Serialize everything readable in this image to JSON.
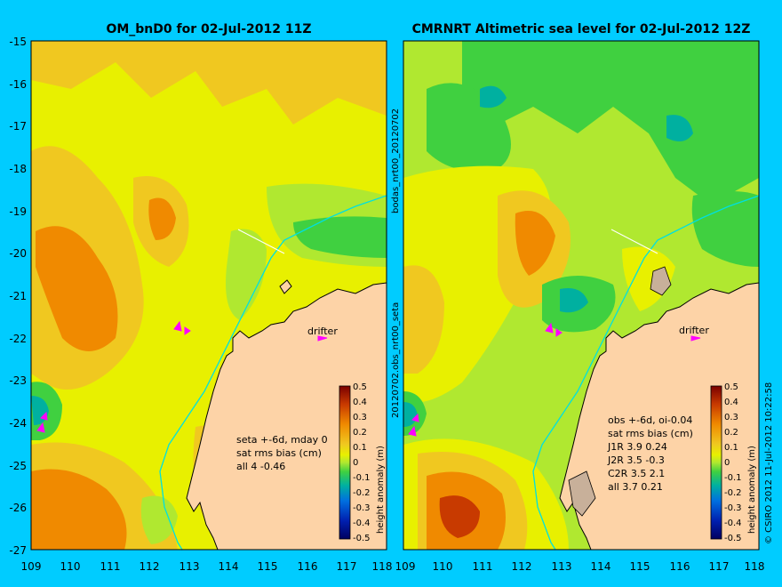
{
  "panels": [
    {
      "title": "OM_bnD0 for 02-Jul-2012 11Z",
      "annotation_lines": [
        "seta +-6d, mday 0",
        "sat rms bias (cm)",
        "all 4 -0.46"
      ],
      "drifter_label": "drifter"
    },
    {
      "title": "CMRNRT Altimetric sea level  for 02-Jul-2012 12Z",
      "annotation_lines": [
        "obs +-6d, oi-0.04",
        "sat rms bias (cm)",
        "J1R   3.9 0.24",
        "J2R   3.5 -0.3",
        "C2R   3.5 2.1",
        "all 3.7 0.21"
      ],
      "drifter_label": "drifter"
    }
  ],
  "axes": {
    "lon_ticks": [
      "109",
      "110",
      "111",
      "112",
      "113",
      "114",
      "115",
      "116",
      "117",
      "118"
    ],
    "lat_ticks": [
      "-15",
      "-16",
      "-17",
      "-18",
      "-19",
      "-20",
      "-21",
      "-22",
      "-23",
      "-24",
      "-25",
      "-26",
      "-27"
    ],
    "lon_range": [
      109,
      118
    ],
    "lat_range": [
      -27,
      -15
    ]
  },
  "colorbar": {
    "label": "height anomaly (m)",
    "ticks": [
      "0.5",
      "0.4",
      "0.3",
      "0.2",
      "0.1",
      "0",
      "-0.1",
      "-0.2",
      "-0.3",
      "-0.4",
      "-0.5"
    ],
    "range": [
      -0.5,
      0.5
    ]
  },
  "side_labels": {
    "middle_top": "bodas_nrt00_20120702",
    "middle_bottom": "20120702.obs_nrt00_seta",
    "right": "© CSIRO 2012   11-Jul-2012 10:22:58"
  },
  "colors": {
    "background": "#00ccff",
    "land": "#fdd3a7",
    "coast_line": "#000000",
    "shelf_contour": "#00e0e0",
    "drifter_marker": "#ff00ff"
  }
}
